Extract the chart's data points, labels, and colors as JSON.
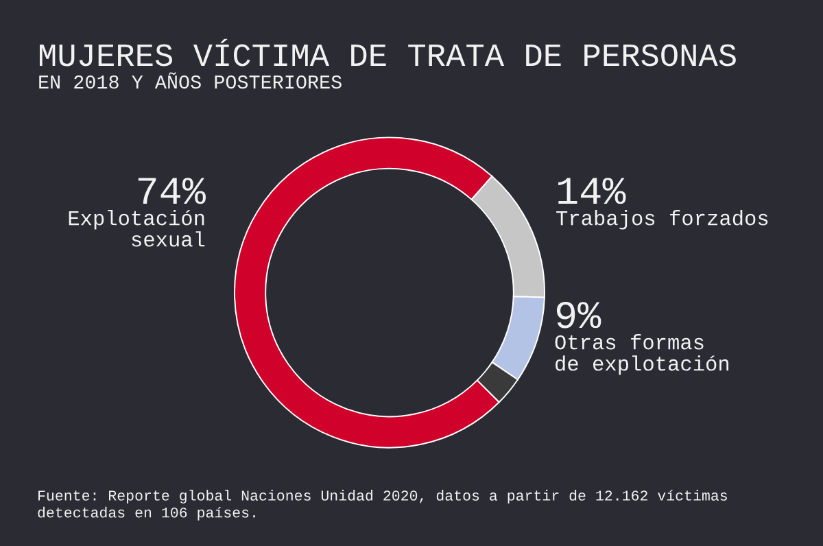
{
  "chart_data": {
    "type": "donut",
    "title": "MUJERES VÍCTIMA DE TRATA DE PERSONAS",
    "subtitle": "EN 2018 Y AÑOS POSTERIORES",
    "categories": [
      "Explotación\nsexual",
      "Trabajos forzados",
      "Otras formas\nde explotación",
      null
    ],
    "values": [
      74,
      14,
      9,
      3
    ],
    "colors": [
      "#d0022c",
      "#c6c6c6",
      "#b3c3e5",
      "#3a3a3a"
    ],
    "value_labels": [
      "74%",
      "14%",
      "9%",
      null
    ],
    "annotations": [
      "Fuente: Reporte global Naciones Unidad 2020, datos a partir de 12.162 víctimas\ndetectadas en 106 países."
    ]
  }
}
